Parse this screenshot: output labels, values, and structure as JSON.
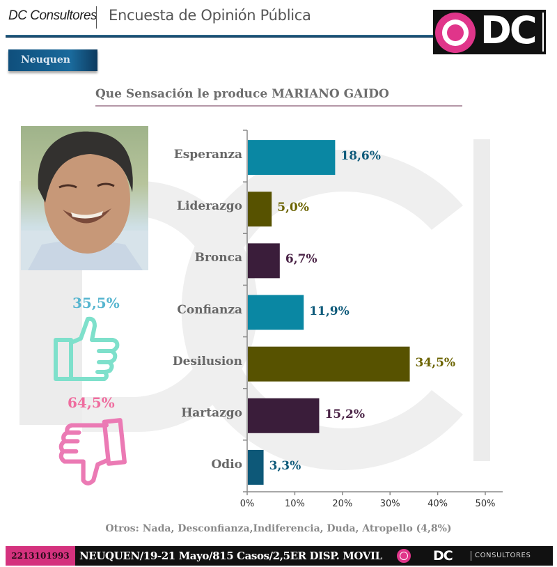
{
  "header": {
    "brand": "DC Consultores",
    "title": "Encuesta de Opinión Pública",
    "logo_text": "DC",
    "region": "Neuquen"
  },
  "colors": {
    "esperanza": "#0a87a3",
    "liderazgo": "#575200",
    "bronca": "#3a1d3a",
    "confianza": "#0a87a3",
    "desilusion": "#575200",
    "hartazgo": "#3a1d3a",
    "odio": "#0d5878",
    "positive": "#7ee0cb",
    "negative": "#eb7ab4",
    "brand_pink": "#e0358a"
  },
  "summary": {
    "positive_pct": "35,5%",
    "negative_pct": "64,5%",
    "positive_icon": "thumbs-up-icon",
    "negative_icon": "thumbs-down-icon"
  },
  "chart_data": {
    "type": "bar",
    "orientation": "horizontal",
    "title": "Que Sensación le produce MARIANO GAIDO",
    "categories": [
      "Esperanza",
      "Liderazgo",
      "Bronca",
      "Confianza",
      "Desilusion",
      "Hartazgo",
      "Odio"
    ],
    "values": [
      18.6,
      5.0,
      6.7,
      11.9,
      34.5,
      15.2,
      3.3
    ],
    "data_labels": [
      "18,6%",
      "5,0%",
      "6,7%",
      "11,9%",
      "34,5%",
      "15,2%",
      "3,3%"
    ],
    "label_colors": [
      "#0e5a7a",
      "#6b6300",
      "#4a2346",
      "#0e5a7a",
      "#6b6300",
      "#4a2346",
      "#0e5a7a"
    ],
    "xlabel": "",
    "ylabel": "",
    "xlim": [
      0,
      50
    ],
    "x_ticks": [
      "0%",
      "10%",
      "20%",
      "30%",
      "40%",
      "50%"
    ],
    "grid": false,
    "legend": "none",
    "note": "Otros: Nada, Desconfianza,Indiferencia, Duda, Atropello (4,8%)"
  },
  "footer": {
    "code": "2213101993",
    "info": "NEUQUEN/19-21 Mayo/815 Casos/2,5ER DISP. MOVIL",
    "logo_text": "DC",
    "consultores": "CONSULTORES"
  }
}
